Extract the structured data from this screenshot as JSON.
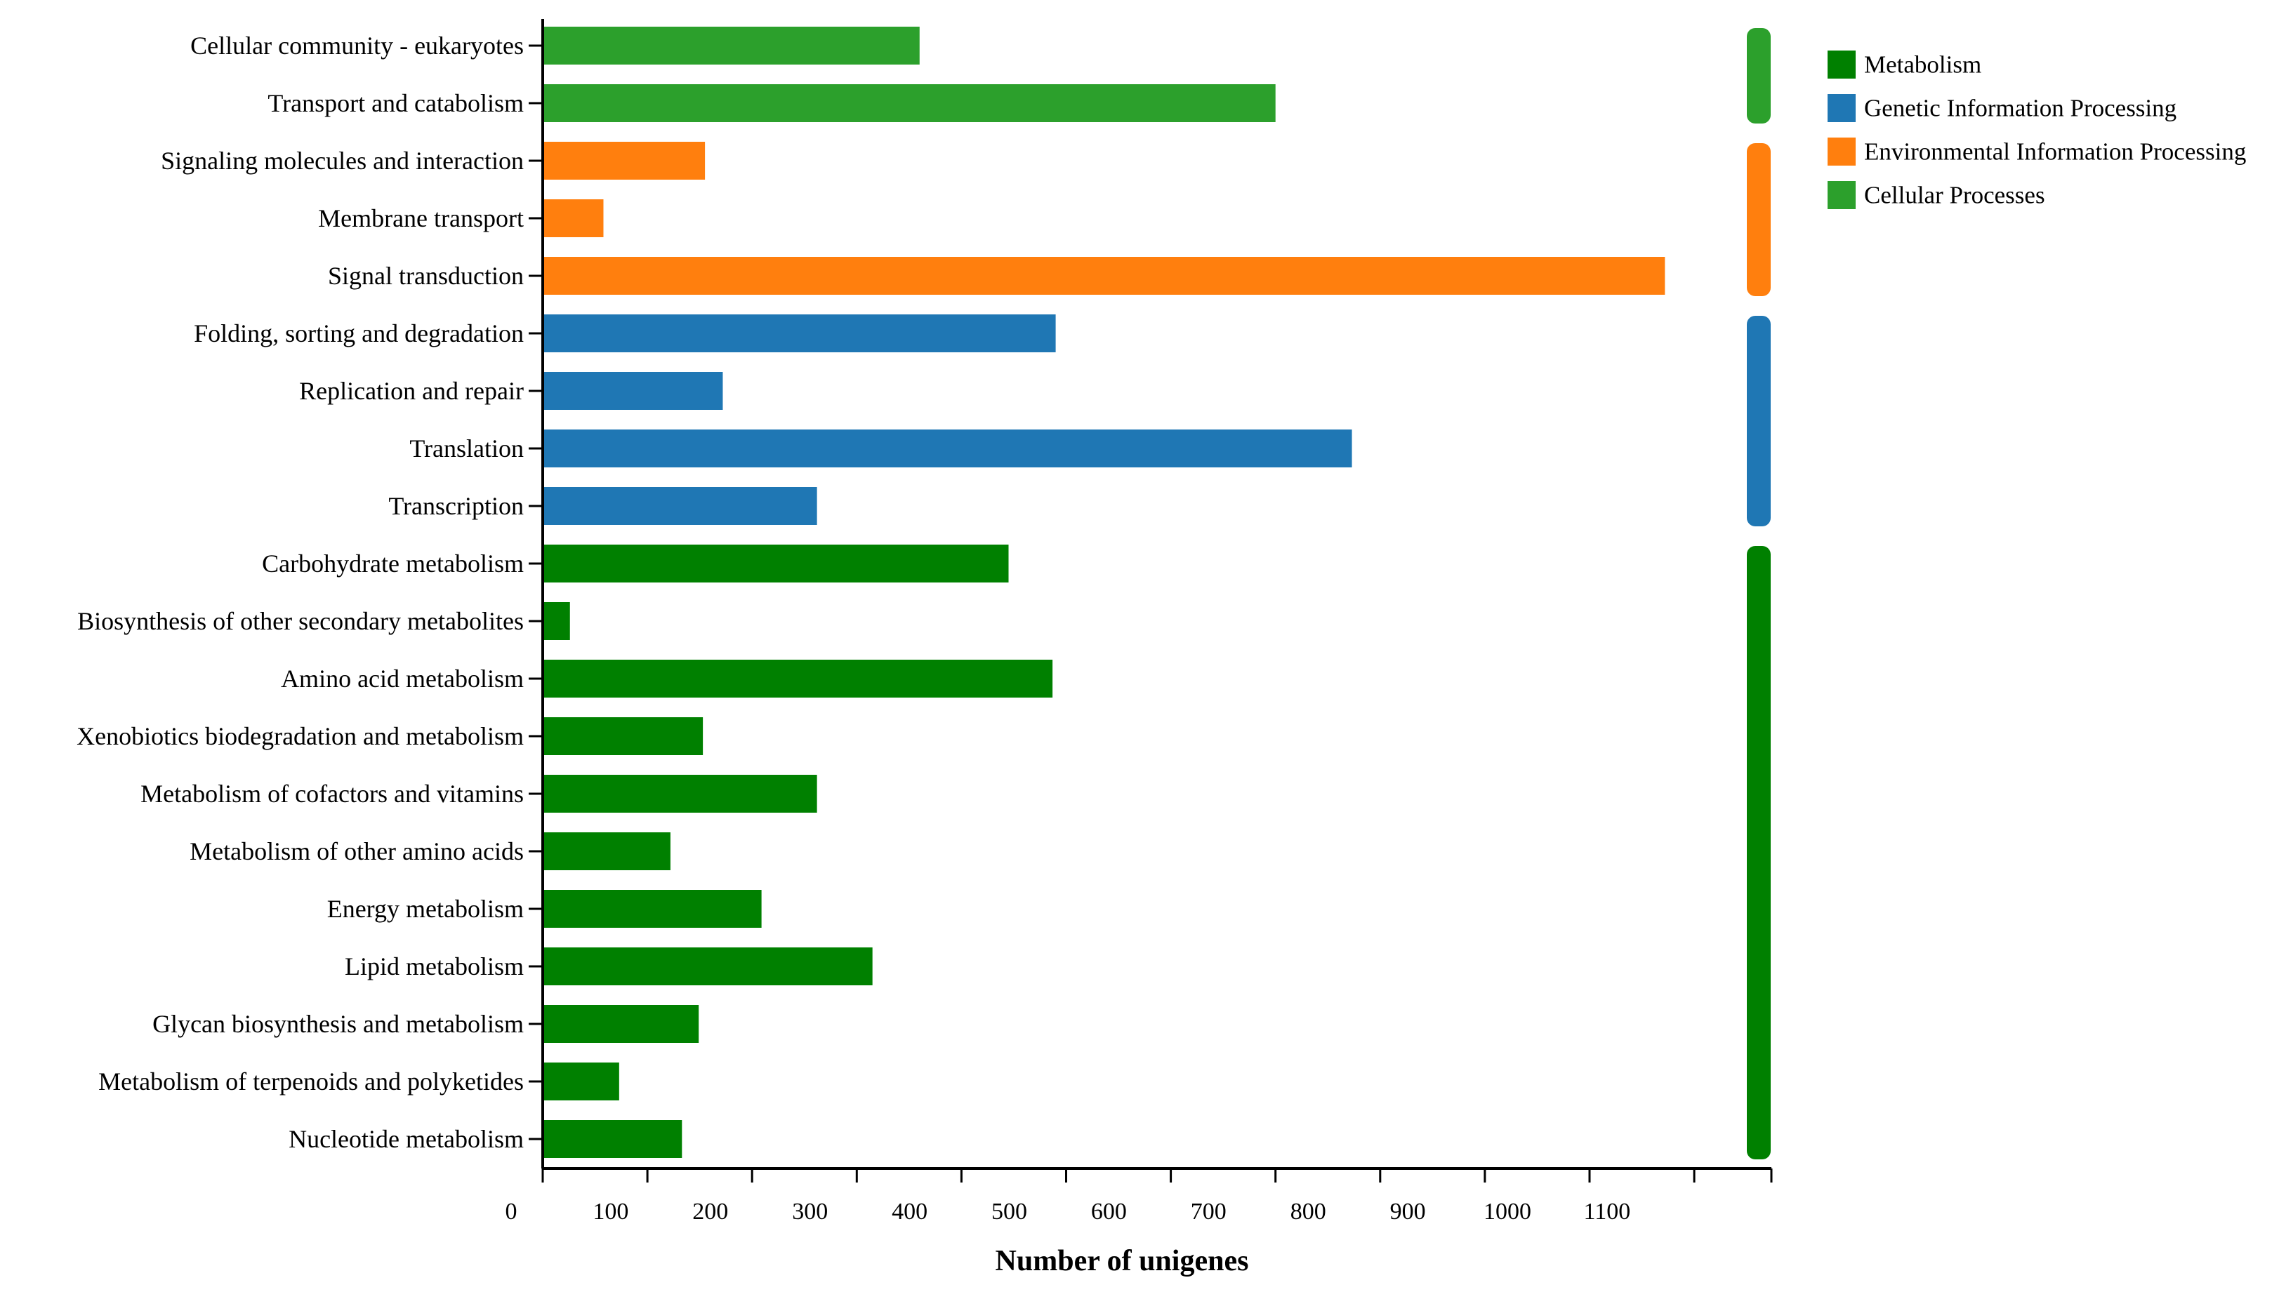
{
  "chart_data": {
    "type": "bar",
    "orientation": "horizontal",
    "title": "",
    "xlabel": "Number of unigenes",
    "ylabel": "",
    "xlim": [
      0,
      1180
    ],
    "xticks": [
      0,
      100,
      200,
      300,
      400,
      500,
      600,
      700,
      800,
      900,
      1000,
      1100
    ],
    "grid": false,
    "legend_position": "top-right",
    "groups": [
      {
        "name": "Metabolism",
        "color": "#008000"
      },
      {
        "name": "Genetic Information Processing",
        "color": "#1f77b4"
      },
      {
        "name": "Environmental Information Processing",
        "color": "#ff7f0e"
      },
      {
        "name": "Cellular Processes",
        "color": "#2ca02c"
      }
    ],
    "bars": [
      {
        "label": "Cellular community - eukaryotes",
        "value": 360,
        "group": "Cellular Processes"
      },
      {
        "label": "Transport and catabolism",
        "value": 700,
        "group": "Cellular Processes"
      },
      {
        "label": "Signaling molecules and interaction",
        "value": 155,
        "group": "Environmental Information Processing"
      },
      {
        "label": "Membrane transport",
        "value": 58,
        "group": "Environmental Information Processing"
      },
      {
        "label": "Signal transduction",
        "value": 1072,
        "group": "Environmental Information Processing"
      },
      {
        "label": "Folding, sorting and degradation",
        "value": 490,
        "group": "Genetic Information Processing"
      },
      {
        "label": "Replication and repair",
        "value": 172,
        "group": "Genetic Information Processing"
      },
      {
        "label": "Translation",
        "value": 773,
        "group": "Genetic Information Processing"
      },
      {
        "label": "Transcription",
        "value": 262,
        "group": "Genetic Information Processing"
      },
      {
        "label": "Carbohydrate metabolism",
        "value": 445,
        "group": "Metabolism"
      },
      {
        "label": "Biosynthesis of other secondary metabolites",
        "value": 26,
        "group": "Metabolism"
      },
      {
        "label": "Amino acid metabolism",
        "value": 487,
        "group": "Metabolism"
      },
      {
        "label": "Xenobiotics biodegradation and metabolism",
        "value": 153,
        "group": "Metabolism"
      },
      {
        "label": "Metabolism of cofactors and vitamins",
        "value": 262,
        "group": "Metabolism"
      },
      {
        "label": "Metabolism of other amino acids",
        "value": 122,
        "group": "Metabolism"
      },
      {
        "label": "Energy metabolism",
        "value": 209,
        "group": "Metabolism"
      },
      {
        "label": "Lipid metabolism",
        "value": 315,
        "group": "Metabolism"
      },
      {
        "label": "Glycan biosynthesis and metabolism",
        "value": 149,
        "group": "Metabolism"
      },
      {
        "label": "Metabolism of terpenoids and polyketides",
        "value": 73,
        "group": "Metabolism"
      },
      {
        "label": "Nucleotide metabolism",
        "value": 133,
        "group": "Metabolism"
      }
    ]
  }
}
